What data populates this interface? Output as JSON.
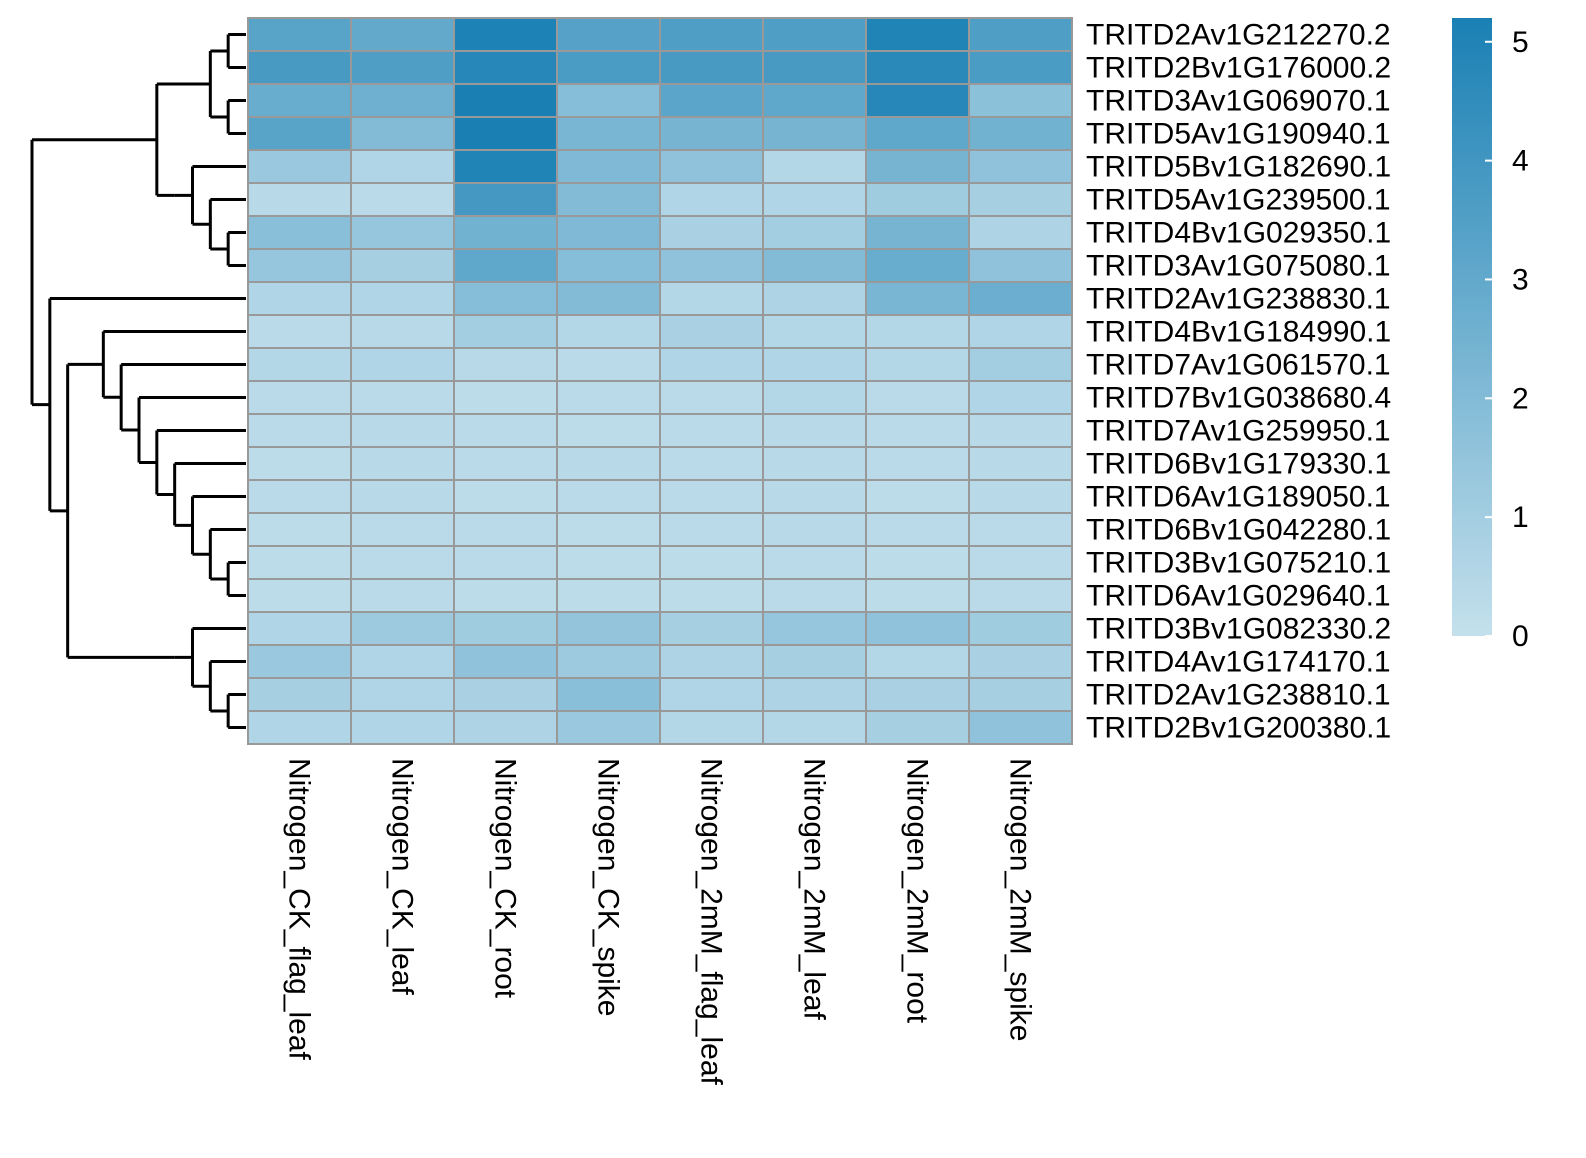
{
  "chart_data": {
    "type": "heatmap",
    "title": "",
    "xlabel": "",
    "ylabel": "",
    "columns": [
      "Nitrogen_CK_flag_leaf",
      "Nitrogen_CK_leaf",
      "Nitrogen_CK_root",
      "Nitrogen_CK_spike",
      "Nitrogen_2mM_flag_leaf",
      "Nitrogen_2mM_leaf",
      "Nitrogen_2mM_root",
      "Nitrogen_2mM_spike"
    ],
    "rows": [
      "TRITD2Av1G212270.2",
      "TRITD2Bv1G176000.2",
      "TRITD3Av1G069070.1",
      "TRITD5Av1G190940.1",
      "TRITD5Bv1G182690.1",
      "TRITD5Av1G239500.1",
      "TRITD4Bv1G029350.1",
      "TRITD3Av1G075080.1",
      "TRITD2Av1G238830.1",
      "TRITD4Bv1G184990.1",
      "TRITD7Av1G061570.1",
      "TRITD7Bv1G038680.4",
      "TRITD7Av1G259950.1",
      "TRITD6Bv1G179330.1",
      "TRITD6Av1G189050.1",
      "TRITD6Bv1G042280.1",
      "TRITD3Bv1G075210.1",
      "TRITD6Av1G029640.1",
      "TRITD3Bv1G082330.2",
      "TRITD4Av1G174170.1",
      "TRITD2Av1G238810.1",
      "TRITD2Bv1G200380.1"
    ],
    "values": [
      [
        3.3,
        3.0,
        5.1,
        3.4,
        3.6,
        3.6,
        5.0,
        3.6
      ],
      [
        3.8,
        3.6,
        4.8,
        3.7,
        3.8,
        3.8,
        4.7,
        3.7
      ],
      [
        2.8,
        2.6,
        5.3,
        1.9,
        3.2,
        3.1,
        4.8,
        1.7
      ],
      [
        3.3,
        2.0,
        5.3,
        2.3,
        2.4,
        2.4,
        3.1,
        2.5
      ],
      [
        1.3,
        0.6,
        5.0,
        2.1,
        1.6,
        0.5,
        2.4,
        1.6
      ],
      [
        0.4,
        0.3,
        3.9,
        2.0,
        0.6,
        0.6,
        1.1,
        0.9
      ],
      [
        1.8,
        1.4,
        2.5,
        2.1,
        0.8,
        1.0,
        2.4,
        0.7
      ],
      [
        1.4,
        0.9,
        3.1,
        1.9,
        1.6,
        2.0,
        2.8,
        1.6
      ],
      [
        0.6,
        0.6,
        1.9,
        2.0,
        0.5,
        0.7,
        2.3,
        2.7
      ],
      [
        0.3,
        0.4,
        1.0,
        0.5,
        0.8,
        0.5,
        0.5,
        0.6
      ],
      [
        0.5,
        0.6,
        0.4,
        0.3,
        0.6,
        0.6,
        0.5,
        1.0
      ],
      [
        0.3,
        0.3,
        0.2,
        0.3,
        0.3,
        0.5,
        0.3,
        0.6
      ],
      [
        0.3,
        0.4,
        0.3,
        0.2,
        0.3,
        0.4,
        0.3,
        0.4
      ],
      [
        0.2,
        0.4,
        0.3,
        0.4,
        0.3,
        0.4,
        0.3,
        0.4
      ],
      [
        0.3,
        0.4,
        0.2,
        0.3,
        0.3,
        0.4,
        0.2,
        0.4
      ],
      [
        0.2,
        0.3,
        0.3,
        0.2,
        0.3,
        0.4,
        0.3,
        0.3
      ],
      [
        0.2,
        0.3,
        0.3,
        0.2,
        0.2,
        0.3,
        0.2,
        0.3
      ],
      [
        0.2,
        0.3,
        0.2,
        0.2,
        0.2,
        0.3,
        0.2,
        0.3
      ],
      [
        0.6,
        1.2,
        1.1,
        1.5,
        0.9,
        1.4,
        1.6,
        1.1
      ],
      [
        1.3,
        0.6,
        1.6,
        1.2,
        0.7,
        0.9,
        0.5,
        0.8
      ],
      [
        0.9,
        0.6,
        0.8,
        1.8,
        0.6,
        0.7,
        0.8,
        0.9
      ],
      [
        0.6,
        0.6,
        0.7,
        1.3,
        0.5,
        0.5,
        0.9,
        1.6
      ]
    ],
    "color_scale": {
      "min": 0,
      "max": 5.2,
      "low_color": "#c4e0ec",
      "high_color": "#1a80b4"
    },
    "legend": {
      "placement": "right",
      "ticks": [
        0,
        1,
        2,
        3,
        4,
        5
      ]
    },
    "row_dendrogram": true,
    "column_dendrogram": false,
    "grid": true
  }
}
